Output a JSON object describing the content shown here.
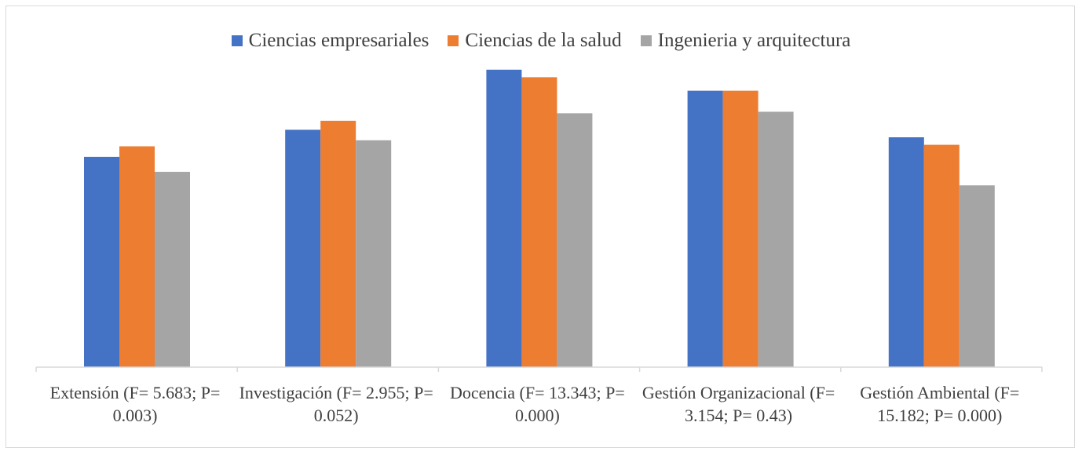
{
  "chart_data": {
    "type": "bar",
    "categories": [
      "Extensión (F= 5.683; P= 0.003)",
      "Investigación (F= 2.955; P= 0.052)",
      "Docencia (F= 13.343; P= 0.000)",
      "Gestión Organizacional (F= 3.154; P= 0.43)",
      "Gestión Ambiental (F= 15.182; P= 0.000)"
    ],
    "series": [
      {
        "name": "Ciencias empresariales",
        "color": "#4472C4",
        "values": [
          0.7,
          0.79,
          0.99,
          0.92,
          0.765
        ]
      },
      {
        "name": "Ciencias de la salud",
        "color": "#ED7D31",
        "values": [
          0.735,
          0.82,
          0.965,
          0.92,
          0.74
        ]
      },
      {
        "name": "Ingenieria y arquitectura",
        "color": "#A5A5A5",
        "values": [
          0.65,
          0.755,
          0.845,
          0.85,
          0.605
        ]
      }
    ],
    "title": "",
    "xlabel": "",
    "ylabel": "",
    "ylim": [
      0,
      1
    ],
    "grid": false,
    "legend": "top"
  }
}
